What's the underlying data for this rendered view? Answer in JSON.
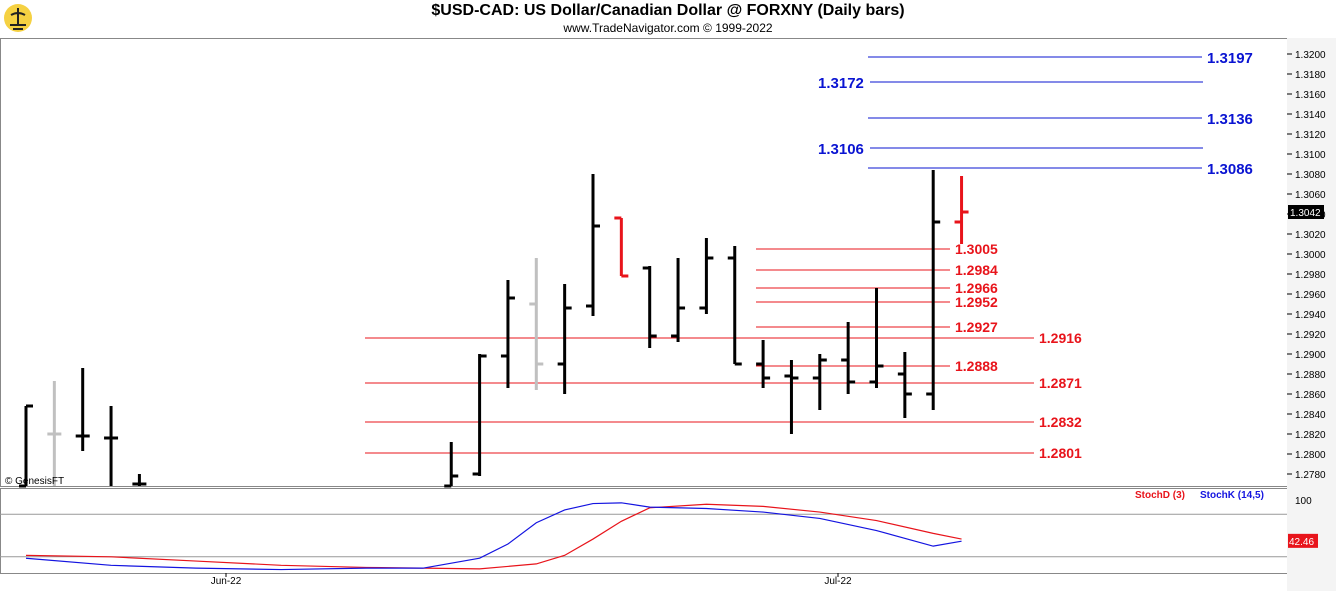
{
  "title": "$USD-CAD:  US Dollar/Canadian Dollar @ FORXNY  (Daily bars)",
  "subtitle": "www.TradeNavigator.com © 1999-2022",
  "watermark": "© GenesisFT",
  "colors": {
    "bar": "#000000",
    "bar_grey": "#c0c0c0",
    "bar_red": "#e8141b",
    "level_red": "#e8141b",
    "level_blue": "#0a14d2",
    "stoch_d": "#e8141b",
    "stoch_k": "#1414e0"
  },
  "chart_data": [
    {
      "type": "ohlc",
      "title": "$USD-CAD:  US Dollar/Canadian Dollar @ FORXNY  (Daily bars)",
      "x_labels": [
        "Jun-22",
        "Jul-22"
      ],
      "ylim": [
        1.2768,
        1.3216
      ],
      "y_ticks": [
        "1.2780",
        "1.2800",
        "1.2820",
        "1.2840",
        "1.2860",
        "1.2880",
        "1.2900",
        "1.2920",
        "1.2940",
        "1.2960",
        "1.2980",
        "1.3000",
        "1.3020",
        "1.3040",
        "1.3060",
        "1.3080",
        "1.3100",
        "1.3120",
        "1.3140",
        "1.3160",
        "1.3180",
        "1.3200"
      ],
      "last_price": "1.3042",
      "bars": [
        {
          "i": 0,
          "open": 1.2768,
          "high": 1.2848,
          "low": 1.2768,
          "close": 1.2848,
          "color": "black"
        },
        {
          "i": 1,
          "open": 1.282,
          "high": 1.2873,
          "low": 1.2768,
          "close": 1.282,
          "color": "grey"
        },
        {
          "i": 2,
          "open": 1.2818,
          "high": 1.2886,
          "low": 1.2803,
          "close": 1.2818,
          "color": "black"
        },
        {
          "i": 3,
          "open": 1.2816,
          "high": 1.2848,
          "low": 1.2768,
          "close": 1.2816,
          "color": "black"
        },
        {
          "i": 4,
          "open": 1.277,
          "high": 1.278,
          "low": 1.2768,
          "close": 1.277,
          "color": "black"
        },
        {
          "i": 15,
          "open": 1.2768,
          "high": 1.2812,
          "low": 1.2768,
          "close": 1.2778,
          "color": "black"
        },
        {
          "i": 16,
          "open": 1.278,
          "high": 1.29,
          "low": 1.2778,
          "close": 1.2898,
          "color": "black"
        },
        {
          "i": 17,
          "open": 1.2898,
          "high": 1.2974,
          "low": 1.2866,
          "close": 1.2956,
          "color": "black"
        },
        {
          "i": 18,
          "open": 1.295,
          "high": 1.2996,
          "low": 1.2864,
          "close": 1.289,
          "color": "grey"
        },
        {
          "i": 19,
          "open": 1.289,
          "high": 1.297,
          "low": 1.286,
          "close": 1.2946,
          "color": "black"
        },
        {
          "i": 20,
          "open": 1.2948,
          "high": 1.308,
          "low": 1.2938,
          "close": 1.3028,
          "color": "black"
        },
        {
          "i": 21,
          "open": 1.3036,
          "high": 1.3036,
          "low": 1.2978,
          "close": 1.2978,
          "color": "red"
        },
        {
          "i": 22,
          "open": 1.2986,
          "high": 1.2988,
          "low": 1.2906,
          "close": 1.2918,
          "color": "black"
        },
        {
          "i": 23,
          "open": 1.2918,
          "high": 1.2996,
          "low": 1.2912,
          "close": 1.2946,
          "color": "black"
        },
        {
          "i": 24,
          "open": 1.2946,
          "high": 1.3016,
          "low": 1.294,
          "close": 1.2996,
          "color": "black"
        },
        {
          "i": 25,
          "open": 1.2996,
          "high": 1.3008,
          "low": 1.289,
          "close": 1.289,
          "color": "black"
        },
        {
          "i": 26,
          "open": 1.289,
          "high": 1.2914,
          "low": 1.2866,
          "close": 1.2876,
          "color": "black"
        },
        {
          "i": 27,
          "open": 1.2878,
          "high": 1.2894,
          "low": 1.282,
          "close": 1.2876,
          "color": "black"
        },
        {
          "i": 28,
          "open": 1.2876,
          "high": 1.29,
          "low": 1.2844,
          "close": 1.2894,
          "color": "black"
        },
        {
          "i": 29,
          "open": 1.2894,
          "high": 1.2932,
          "low": 1.286,
          "close": 1.2872,
          "color": "black"
        },
        {
          "i": 30,
          "open": 1.2872,
          "high": 1.2966,
          "low": 1.2866,
          "close": 1.2888,
          "color": "black"
        },
        {
          "i": 31,
          "open": 1.288,
          "high": 1.2902,
          "low": 1.2836,
          "close": 1.286,
          "color": "black"
        },
        {
          "i": 32,
          "open": 1.286,
          "high": 1.3084,
          "low": 1.2844,
          "close": 1.3032,
          "color": "black"
        },
        {
          "i": 33,
          "open": 1.3032,
          "high": 1.3078,
          "low": 1.301,
          "close": 1.3042,
          "color": "red"
        }
      ],
      "levels_red": [
        {
          "label": "1.3005",
          "value": 1.3005,
          "span": "short"
        },
        {
          "label": "1.2984",
          "value": 1.2984,
          "span": "short"
        },
        {
          "label": "1.2966",
          "value": 1.2966,
          "span": "short"
        },
        {
          "label": "1.2952",
          "value": 1.2952,
          "span": "short"
        },
        {
          "label": "1.2927",
          "value": 1.2927,
          "span": "short"
        },
        {
          "label": "1.2916",
          "value": 1.2916,
          "span": "long"
        },
        {
          "label": "1.2888",
          "value": 1.2888,
          "span": "short"
        },
        {
          "label": "1.2871",
          "value": 1.2871,
          "span": "long"
        },
        {
          "label": "1.2832",
          "value": 1.2832,
          "span": "long"
        },
        {
          "label": "1.2801",
          "value": 1.2801,
          "span": "long"
        }
      ],
      "levels_blue": [
        {
          "label": "1.3197",
          "value": 1.3197,
          "label_side": "right"
        },
        {
          "label": "1.3172",
          "value": 1.3172,
          "label_side": "left"
        },
        {
          "label": "1.3136",
          "value": 1.3136,
          "label_side": "right"
        },
        {
          "label": "1.3106",
          "value": 1.3106,
          "label_side": "left"
        },
        {
          "label": "1.3086",
          "value": 1.3086,
          "label_side": "right"
        }
      ]
    },
    {
      "type": "line",
      "ylim": [
        0,
        100
      ],
      "y_ticks": [
        "100"
      ],
      "last_value": "42.46",
      "legend": [
        "StochD (3)",
        "StochK (14,5)"
      ],
      "series": [
        {
          "name": "StochD (3)",
          "color": "red",
          "x": [
            0,
            3,
            6,
            9,
            12,
            14,
            16,
            18,
            19,
            20,
            21,
            22,
            24,
            26,
            28,
            30,
            32,
            33
          ],
          "values": [
            22,
            20,
            14,
            8,
            5,
            4,
            3,
            10,
            22,
            45,
            70,
            89,
            94,
            91,
            83,
            71,
            53,
            45
          ]
        },
        {
          "name": "StochK (14,5)",
          "color": "blue",
          "x": [
            0,
            3,
            6,
            9,
            12,
            14,
            16,
            17,
            18,
            19,
            20,
            21,
            22,
            24,
            26,
            28,
            30,
            32,
            33
          ],
          "values": [
            18,
            8,
            4,
            2,
            4,
            4,
            18,
            38,
            68,
            86,
            95,
            96,
            90,
            88,
            83,
            74,
            57,
            35,
            42
          ]
        }
      ]
    }
  ]
}
